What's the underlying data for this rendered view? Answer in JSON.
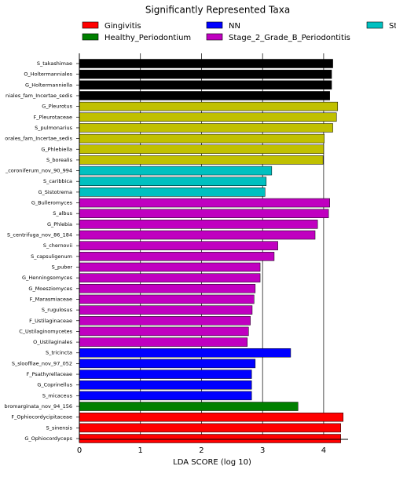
{
  "chart_data": {
    "type": "bar",
    "orientation": "horizontal",
    "title": "Significantly Represented Taxa",
    "xlabel": "LDA SCORE (log 10)",
    "legend": [
      {
        "name": "Gingivitis",
        "color": "#ff0000"
      },
      {
        "name": "Healthy_Periodontium",
        "color": "#008000"
      },
      {
        "name": "NN",
        "color": "#0000ff"
      },
      {
        "name": "Stage_2_Grade_B_Periodontitis",
        "color": "#c000c0"
      },
      {
        "name": "St",
        "color": "#00c0c0"
      }
    ],
    "categories": [
      "S_takashimae",
      "O_Holtermanniales",
      "G_Holtermanniella",
      "niales_fam_Incertae_sedis",
      "G_Pleurotus",
      "F_Pleurotaceae",
      "S_pulmonarius",
      "orales_fam_Incertae_sedis",
      "G_Phlebiella",
      "S_borealis",
      "_coroniferum_nov_90_994",
      "S_caribbica",
      "G_Sistotrema",
      "G_Bulleromyces",
      "S_albus",
      "G_Phlebia",
      "S_centrifuga_nov_86_184",
      "S_chernovii",
      "S_capsuligenum",
      "S_puber",
      "G_Henningsomyces",
      "G_Moesziomyces",
      "F_Marasmiaceae",
      "S_rugulosus",
      "F_Ustilaginaceae",
      "C_Ustilaginomycetes",
      "O_Ustilaginales",
      "S_tricincta",
      "S_slooffiae_nov_97_052",
      "F_Psathyrellaceae",
      "G_Coprinellus",
      "S_micaceus",
      "bromarginata_nov_94_156",
      "F_Ophiocordycipitaceae",
      "S_sinensis",
      "G_Ophiocordyceps"
    ],
    "values": [
      4.15,
      4.13,
      4.13,
      4.1,
      4.23,
      4.21,
      4.15,
      4.01,
      4.0,
      3.99,
      3.15,
      3.06,
      3.04,
      4.1,
      4.08,
      3.9,
      3.86,
      3.25,
      3.19,
      2.96,
      2.96,
      2.88,
      2.86,
      2.83,
      2.8,
      2.77,
      2.75,
      3.46,
      2.88,
      2.82,
      2.82,
      2.82,
      3.58,
      4.32,
      4.28,
      4.28
    ],
    "colors": [
      "#000000",
      "#000000",
      "#000000",
      "#000000",
      "#c0c000",
      "#c0c000",
      "#c0c000",
      "#c0c000",
      "#c0c000",
      "#c0c000",
      "#00c0c0",
      "#00c0c0",
      "#00c0c0",
      "#c000c0",
      "#c000c0",
      "#c000c0",
      "#c000c0",
      "#c000c0",
      "#c000c0",
      "#c000c0",
      "#c000c0",
      "#c000c0",
      "#c000c0",
      "#c000c0",
      "#c000c0",
      "#c000c0",
      "#c000c0",
      "#0000ff",
      "#0000ff",
      "#0000ff",
      "#0000ff",
      "#0000ff",
      "#008000",
      "#ff0000",
      "#ff0000",
      "#ff0000"
    ],
    "xlim": [
      0,
      4.4
    ],
    "xticks": [
      0,
      1,
      2,
      3,
      4
    ],
    "grid": true
  }
}
